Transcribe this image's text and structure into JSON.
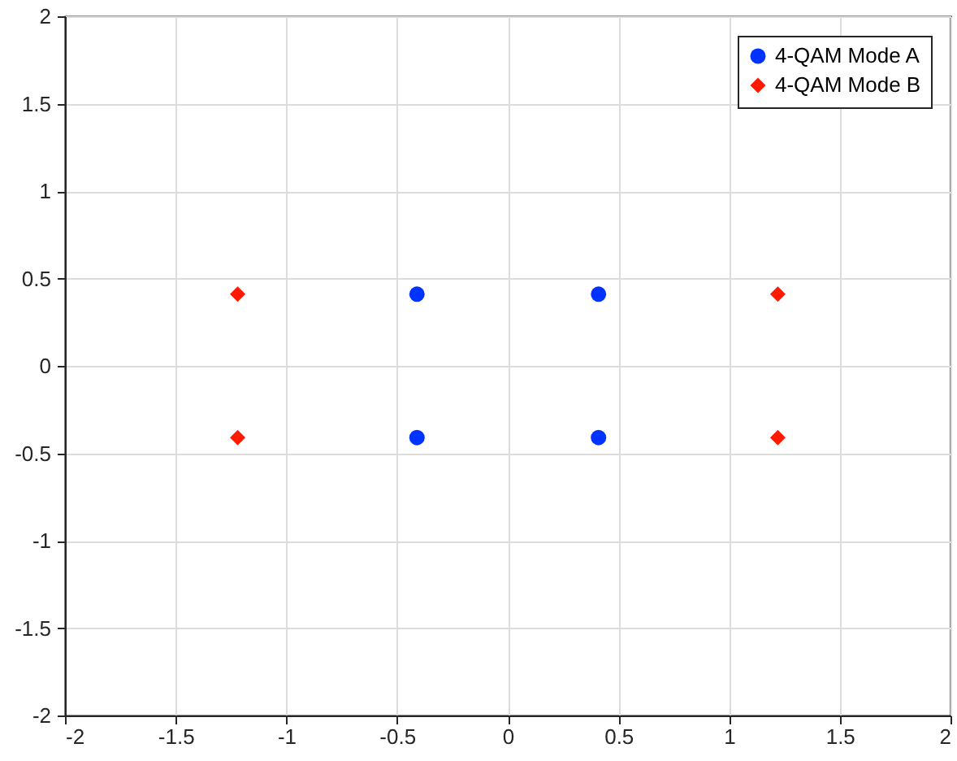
{
  "chart_data": {
    "type": "scatter",
    "xlim": [
      -2,
      2
    ],
    "ylim": [
      -2,
      2
    ],
    "xticks": [
      -2,
      -1.5,
      -1,
      -0.5,
      0,
      0.5,
      1,
      1.5,
      2
    ],
    "yticks": [
      -2,
      -1.5,
      -1,
      -0.5,
      0,
      0.5,
      1,
      1.5,
      2
    ],
    "grid": true,
    "legend": "top right",
    "series": [
      {
        "name": "4-QAM Mode A",
        "color": "#0033ff",
        "marker": "circle",
        "x": [
          -0.41,
          0.41,
          -0.41,
          0.41
        ],
        "values": [
          0.41,
          0.41,
          -0.41,
          -0.41
        ]
      },
      {
        "name": "4-QAM Mode B",
        "color": "#ff1a00",
        "marker": "diamond",
        "x": [
          -1.22,
          1.22,
          -1.22,
          1.22
        ],
        "values": [
          0.41,
          0.41,
          -0.41,
          -0.41
        ]
      }
    ]
  }
}
